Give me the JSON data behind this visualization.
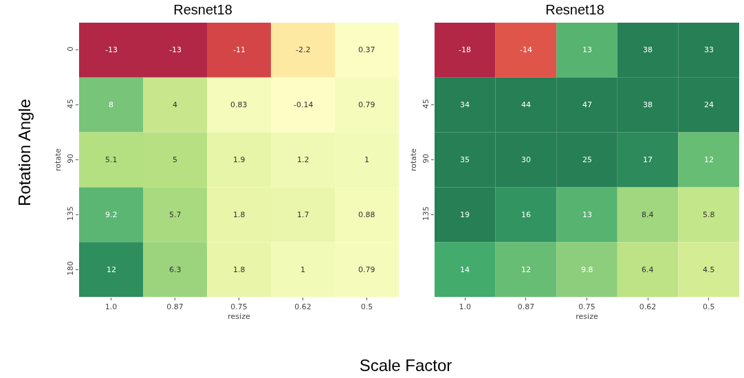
{
  "chart_data": [
    {
      "type": "heatmap",
      "title": "Resnet18",
      "xlabel": "resize",
      "ylabel": "rotate",
      "categories": [
        "1.0",
        "0.87",
        "0.75",
        "0.62",
        "0.5"
      ],
      "y_categories": [
        "0",
        "45",
        "90",
        "135",
        "180"
      ],
      "cells": [
        [
          -13,
          -13,
          -11,
          -2.2,
          0.37
        ],
        [
          8,
          4,
          0.83,
          -0.14,
          0.79
        ],
        [
          5.1,
          5,
          1.9,
          1.2,
          1
        ],
        [
          9.2,
          5.7,
          1.8,
          1.7,
          0.88
        ],
        [
          12,
          6.3,
          1.8,
          1,
          0.79
        ]
      ],
      "data_labels": true,
      "grid": false,
      "annotations": [
        "Rotation Angle",
        "Scale Factor"
      ]
    },
    {
      "type": "heatmap",
      "title": "Resnet18",
      "xlabel": "resize",
      "ylabel": "rotate",
      "categories": [
        "1.0",
        "0.87",
        "0.75",
        "0.62",
        "0.5"
      ],
      "y_categories": [
        null,
        "45",
        "90",
        "135",
        null
      ],
      "cells": [
        [
          -18,
          -14,
          13,
          38,
          33
        ],
        [
          34,
          44,
          47,
          38,
          24
        ],
        [
          35,
          30,
          25,
          17,
          12
        ],
        [
          19,
          16,
          13,
          8.4,
          5.8
        ],
        [
          14,
          12,
          9.8,
          6.4,
          4.5
        ]
      ],
      "data_labels": true,
      "grid": false
    }
  ]
}
